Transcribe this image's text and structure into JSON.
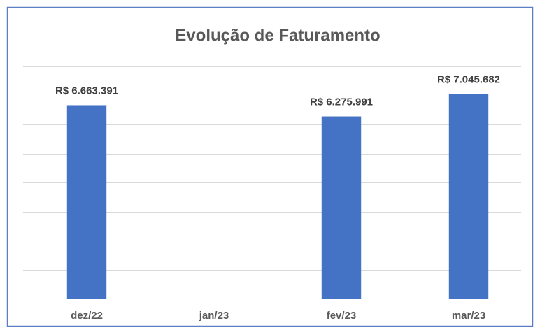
{
  "chart_data": {
    "type": "bar",
    "title": "Evolução de Faturamento",
    "categories": [
      "dez/22",
      "jan/23",
      "fev/23",
      "mar/23"
    ],
    "values": [
      6663391,
      null,
      6275991,
      7045682
    ],
    "value_labels": [
      "R$ 6.663.391",
      null,
      "R$ 6.275.991",
      "R$ 7.045.682"
    ],
    "color": "#4472c4",
    "ylim": [
      0,
      8000000
    ],
    "yticks": [
      0,
      1000000,
      2000000,
      3000000,
      4000000,
      5000000,
      6000000,
      7000000,
      8000000
    ],
    "grid": true
  }
}
